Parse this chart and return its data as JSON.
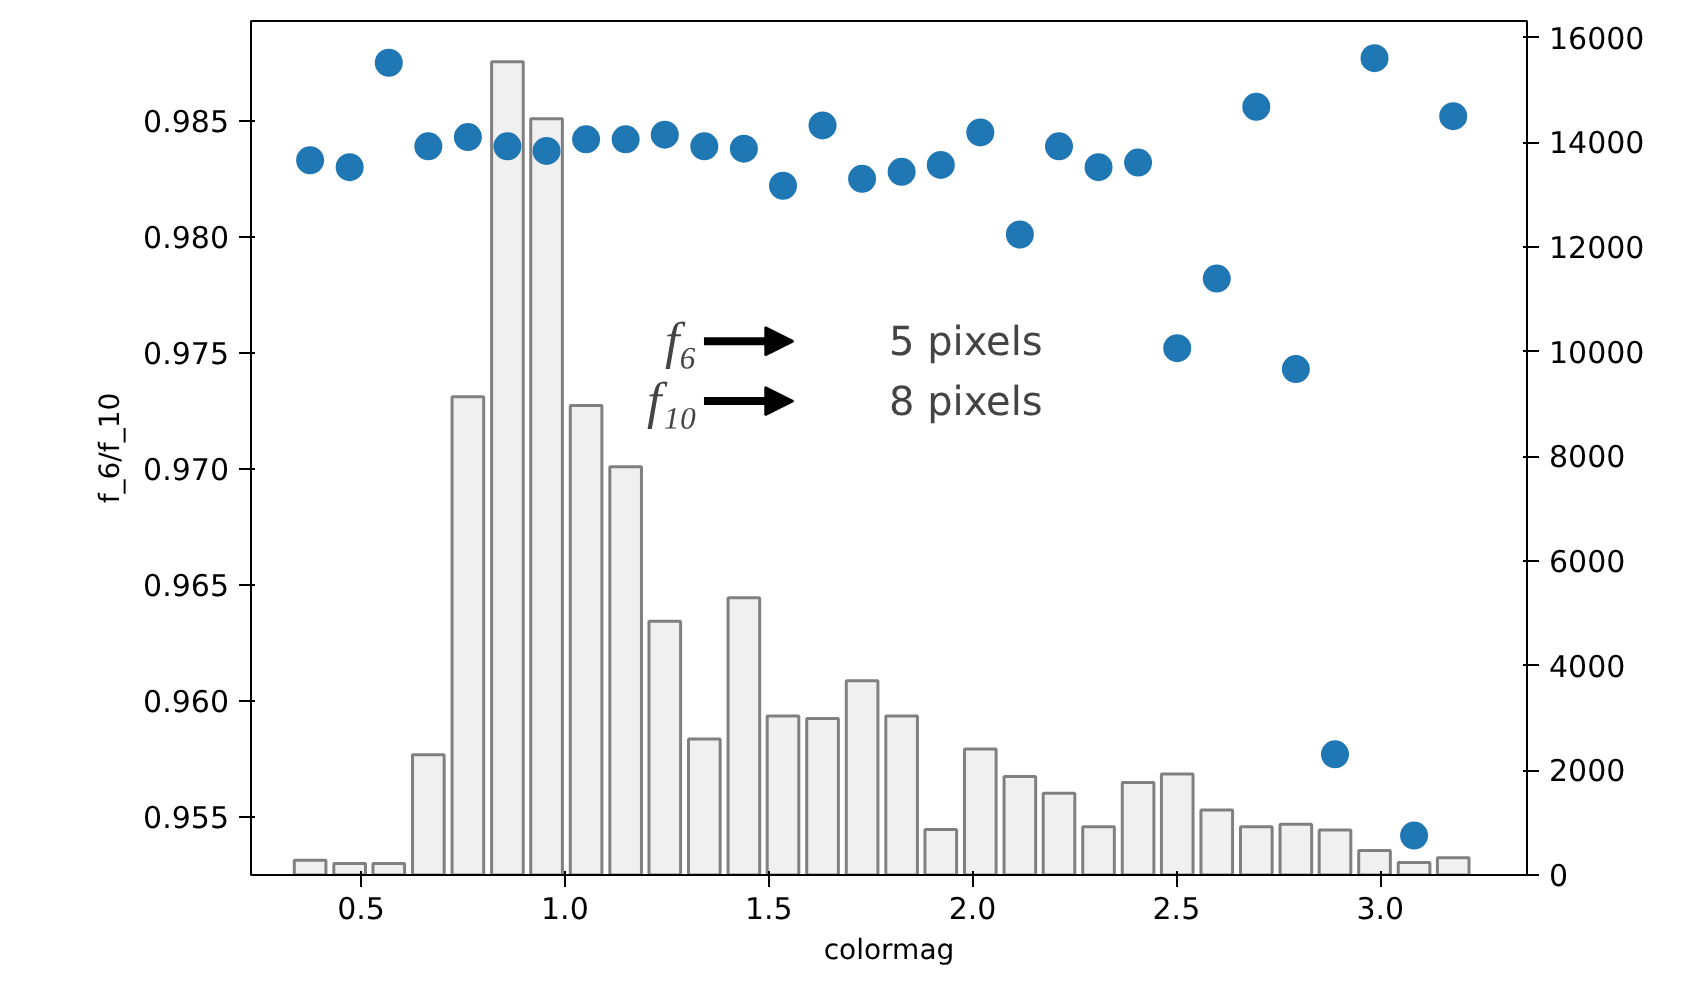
{
  "chart_data": {
    "type": "scatter",
    "xlabel": "colormag",
    "ylabel": "f_6/f_10",
    "grid": false,
    "marker": "circle",
    "xlim": [
      0.23,
      3.36
    ],
    "xticks": [
      {
        "value": 0.5,
        "label": "0.5"
      },
      {
        "value": 1.0,
        "label": "1.0"
      },
      {
        "value": 1.5,
        "label": "1.5"
      },
      {
        "value": 2.0,
        "label": "2.0"
      },
      {
        "value": 2.5,
        "label": "2.5"
      },
      {
        "value": 3.0,
        "label": "3.0"
      }
    ],
    "ylim": [
      0.9525,
      0.9893
    ],
    "yticks": [
      0.955,
      {
        "value": 0.96,
        "label": "0.960"
      },
      0.965,
      {
        "value": 0.97,
        "label": "0.970"
      },
      0.975,
      {
        "value": 0.98,
        "label": "0.980"
      },
      0.985
    ],
    "y2lim": [
      0,
      16320
    ],
    "y2ticks": [
      0,
      2000,
      4000,
      6000,
      8000,
      10000,
      12000,
      14000,
      16000
    ],
    "series": [
      {
        "type": "bar",
        "axis": "y2",
        "color": "#f0f0f0",
        "x": [
          0.375,
          0.472,
          0.568,
          0.665,
          0.762,
          0.859,
          0.955,
          1.052,
          1.149,
          1.245,
          1.342,
          1.439,
          1.535,
          1.632,
          1.729,
          1.826,
          1.922,
          2.019,
          2.116,
          2.212,
          2.309,
          2.406,
          2.502,
          2.599,
          2.696,
          2.793,
          2.889,
          2.986,
          3.083,
          3.179
        ],
        "values": [
          280,
          220,
          220,
          2300,
          9140,
          15540,
          14450,
          8970,
          7800,
          4850,
          2600,
          5300,
          3040,
          2990,
          3710,
          3040,
          870,
          2410,
          1880,
          1560,
          920,
          1770,
          1930,
          1240,
          920,
          970,
          860,
          470,
          240,
          330
        ]
      },
      {
        "color": "#1f77b4",
        "x": [
          0.375,
          0.472,
          0.568,
          0.665,
          0.762,
          0.859,
          0.955,
          1.052,
          1.149,
          1.245,
          1.342,
          1.439,
          1.535,
          1.632,
          1.729,
          1.826,
          1.922,
          2.019,
          2.116,
          2.212,
          2.309,
          2.406,
          2.502,
          2.599,
          2.696,
          2.793,
          2.889,
          2.986,
          3.083,
          3.179
        ],
        "values": [
          0.9833,
          0.983,
          0.9875,
          0.9839,
          0.9843,
          0.9839,
          0.9837,
          0.9842,
          0.9842,
          0.9844,
          0.9839,
          0.9838,
          0.9822,
          0.9848,
          0.9825,
          0.9828,
          0.9831,
          0.9845,
          0.9801,
          0.9839,
          0.983,
          0.9832,
          0.9752,
          0.9782,
          0.9856,
          0.9743,
          0.9577,
          0.9877,
          0.9542,
          0.9852
        ]
      }
    ],
    "annotations": [
      "f₆",
      "f₁₀",
      "5 pixels",
      "8 pixels"
    ]
  }
}
